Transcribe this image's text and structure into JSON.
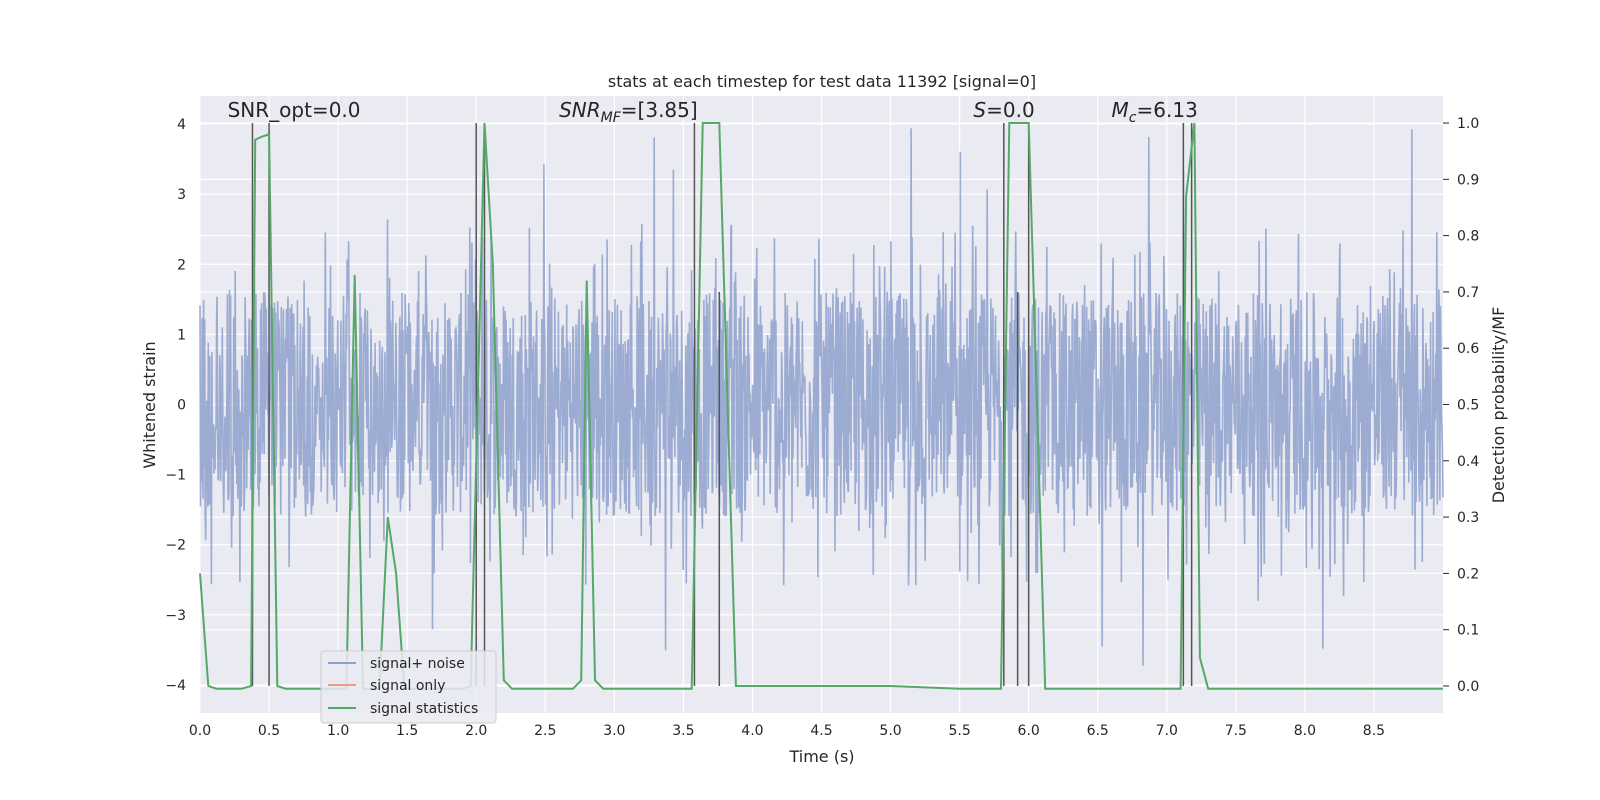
{
  "chart_data": {
    "type": "line",
    "title": "stats at each timestep for test data 11392 [signal=0]",
    "xlabel": "Time (s)",
    "ylabel": "Whitened strain",
    "y2label": "Detection probability/MF",
    "xlim": [
      0.0,
      9.0
    ],
    "ylim": [
      -4.4,
      4.4
    ],
    "y2lim": [
      -0.048,
      1.048
    ],
    "xticks": [
      "0.0",
      "0.5",
      "1.0",
      "1.5",
      "2.0",
      "2.5",
      "3.0",
      "3.5",
      "4.0",
      "4.5",
      "5.0",
      "5.5",
      "6.0",
      "6.5",
      "7.0",
      "7.5",
      "8.0",
      "8.5"
    ],
    "yticks": [
      "−4",
      "−3",
      "−2",
      "−1",
      "0",
      "1",
      "2",
      "3",
      "4"
    ],
    "y2ticks": [
      "0.0",
      "0.1",
      "0.2",
      "0.3",
      "0.4",
      "0.5",
      "0.6",
      "0.7",
      "0.8",
      "0.9",
      "1.0"
    ],
    "grid": true,
    "legend_position": "lower-left",
    "annotations": [
      {
        "text": "SNR_opt=0.0",
        "x": 0.2
      },
      {
        "text": "SNR_MF=[3.85]",
        "x": 2.6
      },
      {
        "text": "S=0.0",
        "x": 5.6
      },
      {
        "text": "M_c=6.13",
        "x": 6.6
      }
    ],
    "noise_envelope": {
      "core_amplitude": 1.6,
      "typical_peak": 2.6,
      "extreme_high": 4.0,
      "extreme_low": -4.0
    },
    "vertical_markers": [
      {
        "x": 0.38,
        "top": 1.0,
        "bottom": 0.0
      },
      {
        "x": 0.5,
        "top": 1.0,
        "bottom": 0.0
      },
      {
        "x": 2.0,
        "top": 1.0,
        "bottom": 0.0
      },
      {
        "x": 2.06,
        "top": 1.0,
        "bottom": 0.0
      },
      {
        "x": 3.58,
        "top": 1.0,
        "bottom": 0.0
      },
      {
        "x": 3.76,
        "top": 0.7,
        "bottom": 0.0
      },
      {
        "x": 5.82,
        "top": 1.0,
        "bottom": 0.0
      },
      {
        "x": 5.92,
        "top": 0.7,
        "bottom": 0.0
      },
      {
        "x": 6.0,
        "top": 1.0,
        "bottom": 0.0
      },
      {
        "x": 7.12,
        "top": 1.0,
        "bottom": 0.0
      },
      {
        "x": 7.18,
        "top": 1.0,
        "bottom": 0.0
      }
    ],
    "series": [
      {
        "name": "signal+ noise",
        "color": "#8da0cb",
        "axis": "left"
      },
      {
        "name": "signal only",
        "color": "#e8a07c",
        "axis": "left",
        "x": [],
        "y": []
      },
      {
        "name": "signal statistics",
        "color": "#55a868",
        "axis": "right",
        "x": [
          0.0,
          0.06,
          0.12,
          0.2,
          0.3,
          0.37,
          0.4,
          0.44,
          0.5,
          0.56,
          0.62,
          0.7,
          0.8,
          0.9,
          1.0,
          1.06,
          1.12,
          1.18,
          1.24,
          1.3,
          1.36,
          1.42,
          1.48,
          1.54,
          1.6,
          1.7,
          1.8,
          1.9,
          1.96,
          2.06,
          2.12,
          2.2,
          2.26,
          2.4,
          2.6,
          2.7,
          2.76,
          2.8,
          2.86,
          2.92,
          3.0,
          3.2,
          3.4,
          3.56,
          3.64,
          3.7,
          3.76,
          3.82,
          3.88,
          4.0,
          4.5,
          5.0,
          5.5,
          5.8,
          5.86,
          5.92,
          6.0,
          6.06,
          6.12,
          6.3,
          6.6,
          6.9,
          7.1,
          7.14,
          7.2,
          7.24,
          7.3,
          7.6,
          8.0,
          8.5,
          9.0
        ],
        "y": [
          0.2,
          0.0,
          -0.005,
          -0.005,
          -0.005,
          0.0,
          0.97,
          0.975,
          0.98,
          0.0,
          -0.005,
          -0.005,
          -0.005,
          -0.005,
          -0.005,
          -0.005,
          0.73,
          -0.005,
          -0.005,
          -0.005,
          0.3,
          0.2,
          -0.005,
          -0.005,
          -0.005,
          -0.005,
          -0.005,
          -0.005,
          0.0,
          1.0,
          0.75,
          0.01,
          -0.005,
          -0.005,
          -0.005,
          -0.005,
          0.01,
          0.72,
          0.01,
          -0.005,
          -0.005,
          -0.005,
          -0.005,
          -0.005,
          1.0,
          1.0,
          1.0,
          0.5,
          0.0,
          0.0,
          0.0,
          0.0,
          -0.005,
          -0.005,
          1.0,
          1.0,
          1.0,
          0.5,
          -0.005,
          -0.005,
          -0.005,
          -0.005,
          -0.005,
          0.87,
          1.0,
          0.05,
          -0.005,
          -0.005,
          -0.005,
          -0.005,
          -0.005
        ]
      }
    ]
  }
}
